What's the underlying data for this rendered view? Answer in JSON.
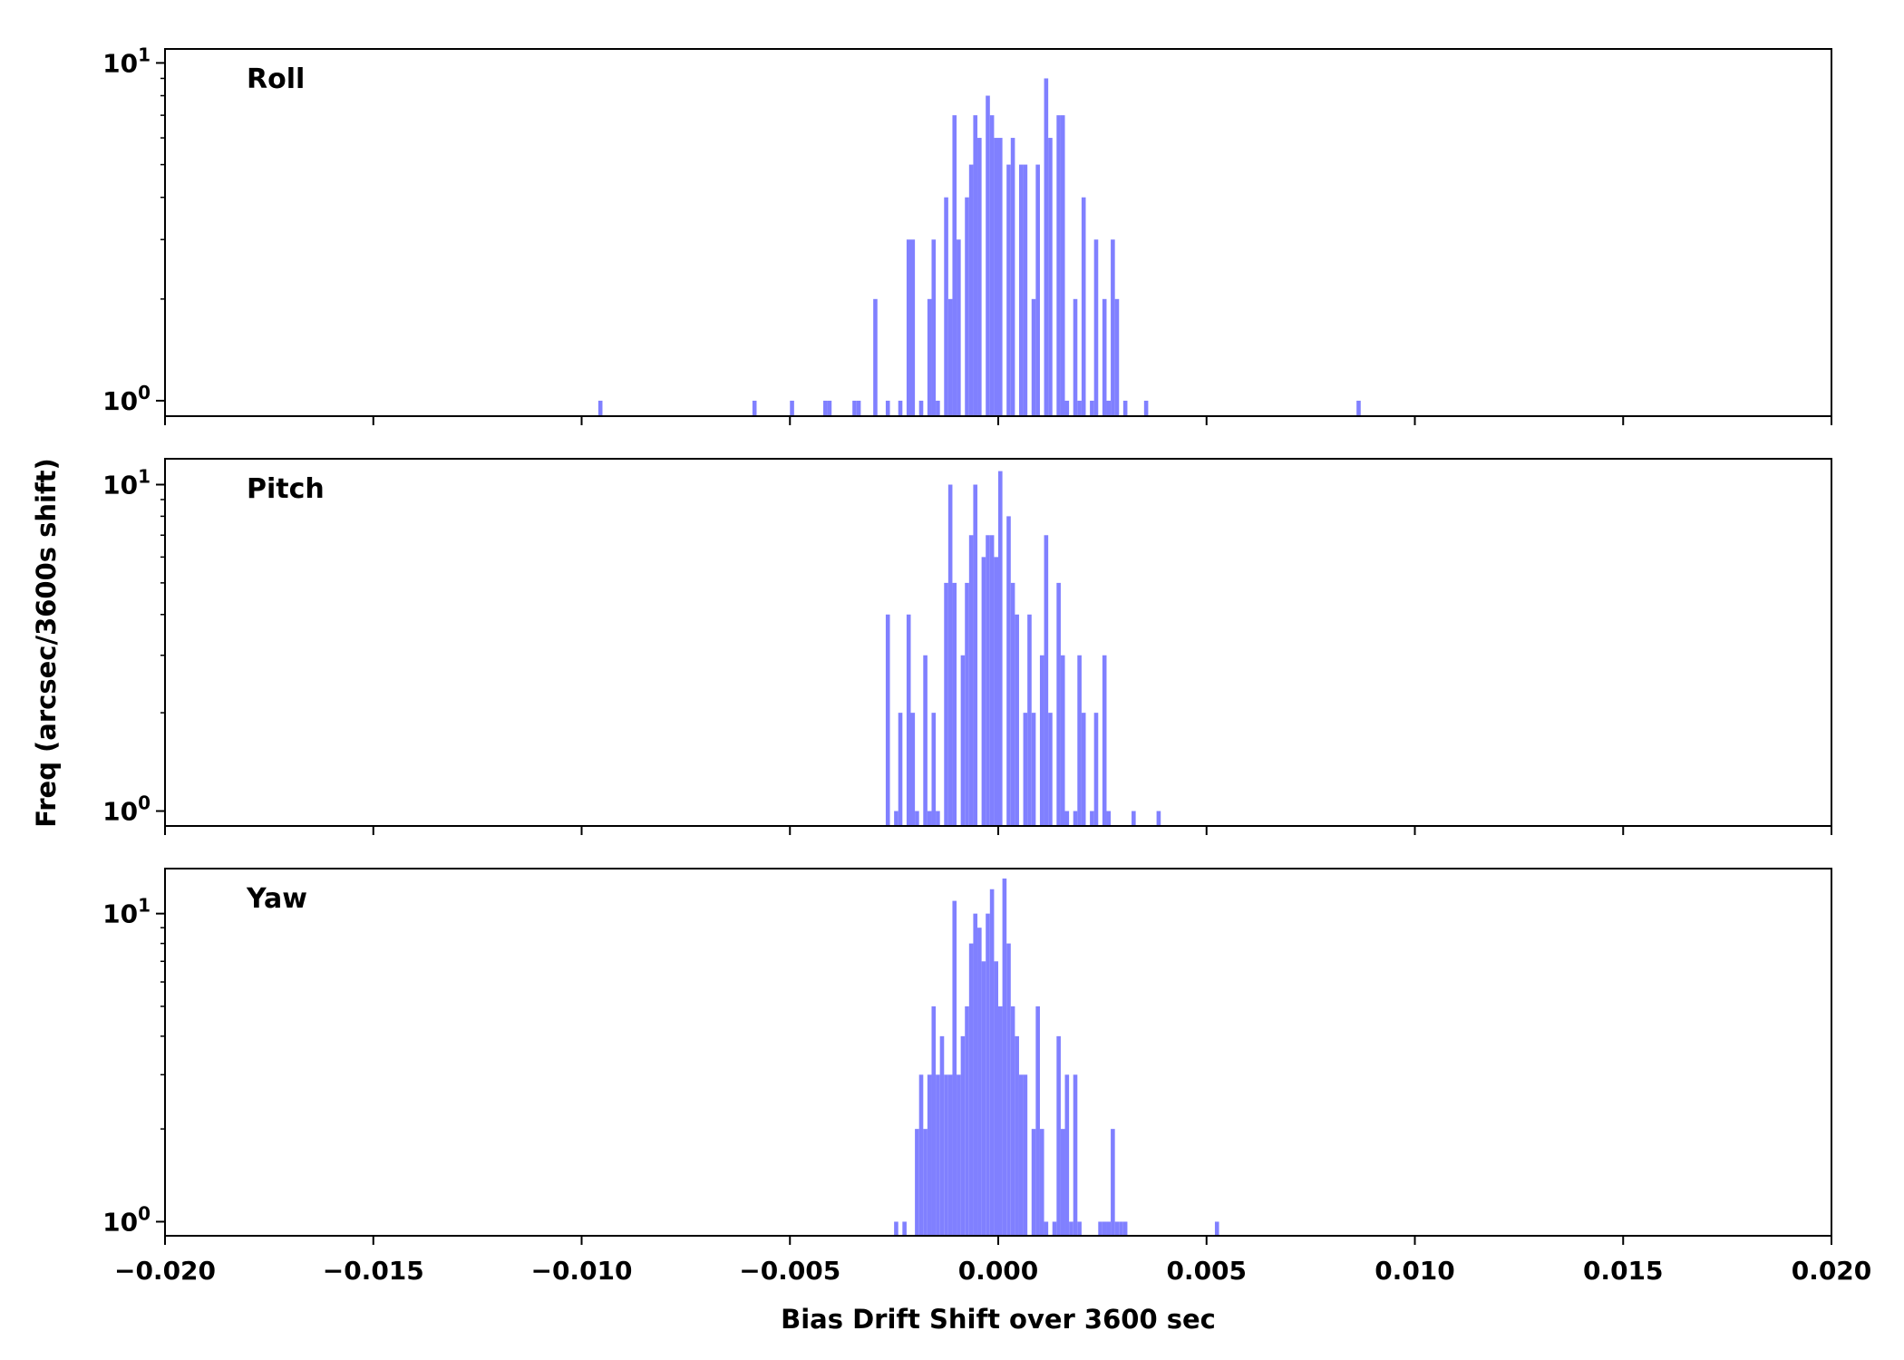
{
  "chart_data": {
    "type": "bar",
    "subtype": "histogram",
    "xlabel": "Bias Drift Shift over 3600 sec",
    "ylabel": "Freq (arcsec/3600s shift)",
    "xlim": [
      -0.02,
      0.02
    ],
    "xticks": [
      "−0.020",
      "−0.015",
      "−0.010",
      "−0.005",
      "0.000",
      "0.005",
      "0.010",
      "0.015",
      "0.020"
    ],
    "yscale": "log",
    "bar_color": "#8080ff",
    "grid": false,
    "panels": [
      {
        "name": "Roll",
        "ylim": [
          0.9,
          11
        ],
        "ytick_labels": [
          {
            "base": "10",
            "exp": "0"
          },
          {
            "base": "10",
            "exp": "1"
          }
        ],
        "bins": [
          [
            -0.0096,
            1
          ],
          [
            -0.0059,
            1
          ],
          [
            -0.005,
            1
          ],
          [
            -0.0042,
            1
          ],
          [
            -0.0041,
            1
          ],
          [
            -0.0035,
            1
          ],
          [
            -0.0034,
            1
          ],
          [
            -0.003,
            2
          ],
          [
            -0.0027,
            1
          ],
          [
            -0.0024,
            1
          ],
          [
            -0.0022,
            3
          ],
          [
            -0.0021,
            3
          ],
          [
            -0.0019,
            1
          ],
          [
            -0.0017,
            2
          ],
          [
            -0.0016,
            3
          ],
          [
            -0.0015,
            1
          ],
          [
            -0.0013,
            4
          ],
          [
            -0.0012,
            2
          ],
          [
            -0.0011,
            7
          ],
          [
            -0.001,
            3
          ],
          [
            -0.0008,
            4
          ],
          [
            -0.0007,
            5
          ],
          [
            -0.0006,
            7
          ],
          [
            -0.0005,
            6
          ],
          [
            -0.0003,
            8
          ],
          [
            -0.0002,
            7
          ],
          [
            -0.0001,
            6
          ],
          [
            0.0,
            6
          ],
          [
            0.0002,
            5
          ],
          [
            0.0003,
            6
          ],
          [
            0.0005,
            5
          ],
          [
            0.0006,
            5
          ],
          [
            0.0008,
            2
          ],
          [
            0.0009,
            5
          ],
          [
            0.0011,
            9
          ],
          [
            0.0012,
            6
          ],
          [
            0.0014,
            7
          ],
          [
            0.0015,
            7
          ],
          [
            0.0016,
            1
          ],
          [
            0.0018,
            2
          ],
          [
            0.0019,
            1
          ],
          [
            0.002,
            4
          ],
          [
            0.0022,
            1
          ],
          [
            0.0023,
            3
          ],
          [
            0.0025,
            2
          ],
          [
            0.0026,
            1
          ],
          [
            0.0027,
            3
          ],
          [
            0.0028,
            2
          ],
          [
            0.003,
            1
          ],
          [
            0.0035,
            1
          ],
          [
            0.0086,
            1
          ]
        ]
      },
      {
        "name": "Pitch",
        "ylim": [
          0.9,
          12
        ],
        "ytick_labels": [
          {
            "base": "10",
            "exp": "0"
          },
          {
            "base": "10",
            "exp": "1"
          }
        ],
        "bins": [
          [
            -0.0027,
            4
          ],
          [
            -0.0025,
            1
          ],
          [
            -0.0024,
            2
          ],
          [
            -0.0022,
            4
          ],
          [
            -0.0021,
            2
          ],
          [
            -0.002,
            1
          ],
          [
            -0.0018,
            3
          ],
          [
            -0.0017,
            1
          ],
          [
            -0.0016,
            2
          ],
          [
            -0.0015,
            1
          ],
          [
            -0.0013,
            5
          ],
          [
            -0.0012,
            10
          ],
          [
            -0.0011,
            5
          ],
          [
            -0.0009,
            3
          ],
          [
            -0.0008,
            5
          ],
          [
            -0.0007,
            7
          ],
          [
            -0.0006,
            10
          ],
          [
            -0.0004,
            6
          ],
          [
            -0.0003,
            7
          ],
          [
            -0.0002,
            7
          ],
          [
            -0.0001,
            6
          ],
          [
            0.0,
            11
          ],
          [
            0.0002,
            8
          ],
          [
            0.0003,
            5
          ],
          [
            0.0004,
            4
          ],
          [
            0.0006,
            2
          ],
          [
            0.0007,
            4
          ],
          [
            0.0008,
            2
          ],
          [
            0.001,
            3
          ],
          [
            0.0011,
            7
          ],
          [
            0.0012,
            2
          ],
          [
            0.0014,
            5
          ],
          [
            0.0015,
            3
          ],
          [
            0.0016,
            1
          ],
          [
            0.0018,
            1
          ],
          [
            0.0019,
            3
          ],
          [
            0.002,
            2
          ],
          [
            0.0022,
            1
          ],
          [
            0.0023,
            2
          ],
          [
            0.0025,
            3
          ],
          [
            0.0026,
            1
          ],
          [
            0.0032,
            1
          ],
          [
            0.0038,
            1
          ]
        ]
      },
      {
        "name": "Yaw",
        "ylim": [
          0.9,
          14
        ],
        "ytick_labels": [
          {
            "base": "10",
            "exp": "0"
          },
          {
            "base": "10",
            "exp": "1"
          }
        ],
        "bins": [
          [
            -0.0025,
            1
          ],
          [
            -0.0023,
            1
          ],
          [
            -0.002,
            2
          ],
          [
            -0.0019,
            3
          ],
          [
            -0.0018,
            2
          ],
          [
            -0.0017,
            3
          ],
          [
            -0.0016,
            5
          ],
          [
            -0.0015,
            3
          ],
          [
            -0.0014,
            4
          ],
          [
            -0.0013,
            3
          ],
          [
            -0.0012,
            3
          ],
          [
            -0.0011,
            11
          ],
          [
            -0.001,
            3
          ],
          [
            -0.0009,
            4
          ],
          [
            -0.0008,
            5
          ],
          [
            -0.0007,
            8
          ],
          [
            -0.0006,
            10
          ],
          [
            -0.0005,
            9
          ],
          [
            -0.0004,
            7
          ],
          [
            -0.0003,
            10
          ],
          [
            -0.0002,
            12
          ],
          [
            -0.0001,
            7
          ],
          [
            0.0,
            5
          ],
          [
            0.0001,
            13
          ],
          [
            0.0002,
            8
          ],
          [
            0.0003,
            5
          ],
          [
            0.0004,
            4
          ],
          [
            0.0005,
            3
          ],
          [
            0.0006,
            3
          ],
          [
            0.0008,
            2
          ],
          [
            0.0009,
            5
          ],
          [
            0.001,
            2
          ],
          [
            0.0011,
            1
          ],
          [
            0.0013,
            1
          ],
          [
            0.0014,
            4
          ],
          [
            0.0015,
            2
          ],
          [
            0.0016,
            3
          ],
          [
            0.0017,
            1
          ],
          [
            0.0018,
            3
          ],
          [
            0.0019,
            1
          ],
          [
            0.0024,
            1
          ],
          [
            0.0025,
            1
          ],
          [
            0.0026,
            1
          ],
          [
            0.0027,
            2
          ],
          [
            0.0028,
            1
          ],
          [
            0.0029,
            1
          ],
          [
            0.003,
            1
          ],
          [
            0.0052,
            1
          ]
        ]
      }
    ]
  }
}
